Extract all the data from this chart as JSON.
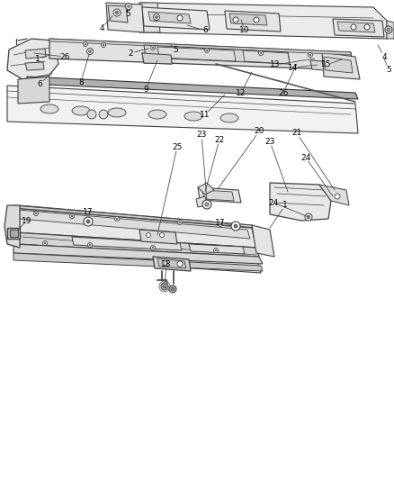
{
  "bg": "#ffffff",
  "lc": "#404040",
  "tc": "#000000",
  "top_labels": [
    [
      "5",
      140,
      515
    ],
    [
      "4",
      130,
      497
    ],
    [
      "1",
      55,
      467
    ],
    [
      "26",
      88,
      468
    ],
    [
      "2",
      155,
      471
    ],
    [
      "5",
      200,
      474
    ],
    [
      "6",
      237,
      497
    ],
    [
      "10",
      268,
      497
    ],
    [
      "4",
      427,
      467
    ],
    [
      "5",
      432,
      453
    ],
    [
      "6",
      50,
      438
    ],
    [
      "8",
      95,
      440
    ],
    [
      "9",
      162,
      432
    ],
    [
      "13",
      302,
      459
    ],
    [
      "14",
      322,
      455
    ],
    [
      "15",
      360,
      459
    ],
    [
      "11",
      228,
      404
    ],
    [
      "12",
      272,
      427
    ],
    [
      "26",
      310,
      428
    ]
  ],
  "bot_labels": [
    [
      "25",
      195,
      368
    ],
    [
      "1",
      315,
      302
    ],
    [
      "17",
      98,
      295
    ],
    [
      "17",
      243,
      283
    ],
    [
      "18",
      183,
      237
    ],
    [
      "19",
      28,
      286
    ],
    [
      "20",
      286,
      384
    ],
    [
      "21",
      327,
      382
    ],
    [
      "22",
      242,
      375
    ],
    [
      "23",
      222,
      381
    ],
    [
      "23",
      298,
      374
    ],
    [
      "24",
      302,
      305
    ],
    [
      "24",
      338,
      355
    ]
  ]
}
